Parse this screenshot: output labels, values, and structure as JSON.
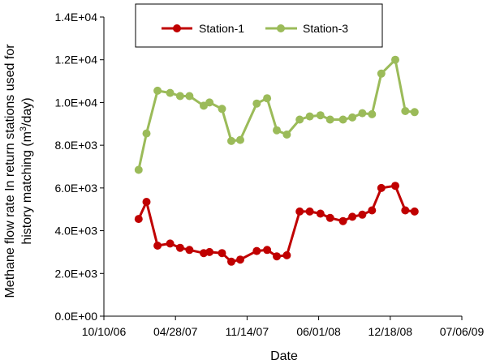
{
  "chart_data": {
    "type": "line",
    "title": "",
    "xlabel": "Date",
    "ylabel_line1": "Methane flow rate In return stations used for",
    "ylabel_line2_prefix": "history matching (m",
    "ylabel_line2_sup": "3",
    "ylabel_line2_suffix": "/day)",
    "xlim": [
      "2006-10-10",
      "2009-07-06"
    ],
    "ylim": [
      0,
      14000
    ],
    "x_ticks": [
      "2006-10-10",
      "2007-04-28",
      "2007-11-14",
      "2008-06-01",
      "2008-12-18",
      "2009-07-06"
    ],
    "x_tick_labels": [
      "10/10/06",
      "04/28/07",
      "11/14/07",
      "06/01/08",
      "12/18/08",
      "07/06/09"
    ],
    "y_ticks": [
      0,
      2000,
      4000,
      6000,
      8000,
      10000,
      12000,
      14000
    ],
    "y_tick_labels": [
      "0.0E+00",
      "2.0E+03",
      "4.0E+03",
      "6.0E+03",
      "8.0E+03",
      "1.0E+04",
      "1.2E+04",
      "1.4E+04"
    ],
    "grid": false,
    "legend_position": "top-center",
    "series": [
      {
        "name": "Station-1",
        "color": "#C00000",
        "x": [
          "2007-01-15",
          "2007-02-06",
          "2007-03-09",
          "2007-04-13",
          "2007-05-11",
          "2007-06-06",
          "2007-07-16",
          "2007-08-01",
          "2007-09-05",
          "2007-10-01",
          "2007-10-26",
          "2007-12-11",
          "2008-01-09",
          "2008-02-05",
          "2008-03-04",
          "2008-04-09",
          "2008-05-07",
          "2008-06-06",
          "2008-07-03",
          "2008-08-08",
          "2008-09-03",
          "2008-10-01",
          "2008-10-28",
          "2008-11-23",
          "2009-01-01",
          "2009-01-29",
          "2009-02-24"
        ],
        "y": [
          4550,
          5350,
          3300,
          3400,
          3200,
          3100,
          2950,
          3000,
          2950,
          2550,
          2650,
          3050,
          3100,
          2800,
          2850,
          4900,
          4900,
          4800,
          4600,
          4450,
          4650,
          4750,
          4950,
          6000,
          6100,
          4950,
          4900
        ]
      },
      {
        "name": "Station-3",
        "color": "#9BBB59",
        "x": [
          "2007-01-15",
          "2007-02-06",
          "2007-03-09",
          "2007-04-13",
          "2007-05-11",
          "2007-06-06",
          "2007-07-16",
          "2007-08-01",
          "2007-09-05",
          "2007-10-01",
          "2007-10-26",
          "2007-12-11",
          "2008-01-09",
          "2008-02-05",
          "2008-03-04",
          "2008-04-09",
          "2008-05-07",
          "2008-06-06",
          "2008-07-03",
          "2008-08-08",
          "2008-09-03",
          "2008-10-01",
          "2008-10-28",
          "2008-11-23",
          "2009-01-01",
          "2009-01-29",
          "2009-02-24"
        ],
        "y": [
          6850,
          8550,
          10550,
          10450,
          10300,
          10300,
          9850,
          10000,
          9700,
          8200,
          8250,
          9950,
          10200,
          8700,
          8500,
          9200,
          9350,
          9400,
          9200,
          9200,
          9300,
          9500,
          9450,
          11350,
          12000,
          9600,
          9550
        ]
      }
    ]
  }
}
